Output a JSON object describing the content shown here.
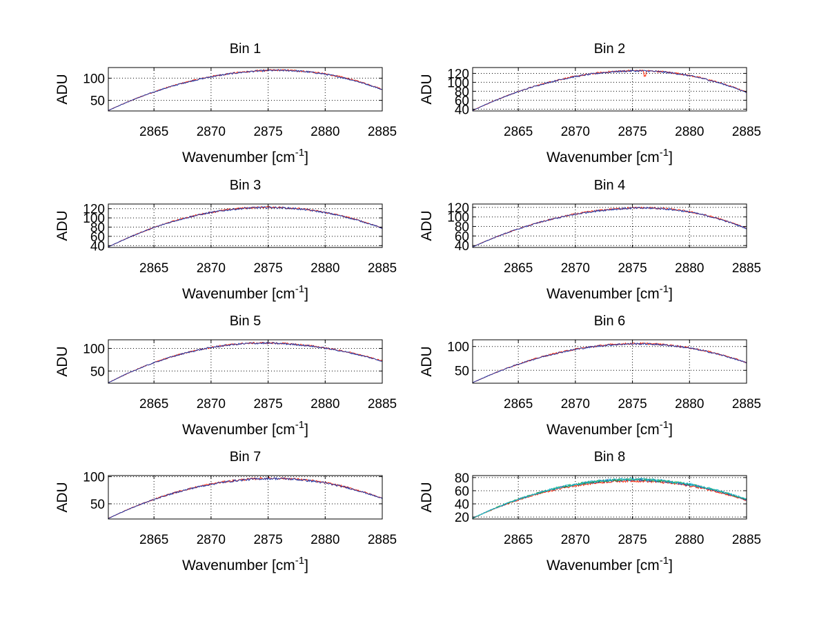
{
  "figure": {
    "background": "#ffffff"
  },
  "chart_data": [
    {
      "type": "line",
      "title": "Bin 1",
      "xlabel": "Wavenumber [cm",
      "xlabel_sup": "-1",
      "xlabel_suffix": "]",
      "ylabel": "ADU",
      "xlim": [
        2861,
        2885
      ],
      "ylim": [
        26,
        124
      ],
      "xticks": [
        2865,
        2870,
        2875,
        2880,
        2885
      ],
      "yticks": [
        50,
        100
      ],
      "series": [
        {
          "name": "red",
          "color": "#ff2200",
          "peak_x": 2876,
          "peak": 118,
          "ends": [
            27,
            75
          ]
        },
        {
          "name": "blue",
          "color": "#1f3aa8",
          "peak_x": 2876,
          "peak": 117.5,
          "ends": [
            27,
            74
          ]
        }
      ]
    },
    {
      "type": "line",
      "title": "Bin 2",
      "xlabel": "Wavenumber [cm",
      "xlabel_sup": "-1",
      "xlabel_suffix": "]",
      "ylabel": "ADU",
      "xlim": [
        2861,
        2885
      ],
      "ylim": [
        36,
        133
      ],
      "xticks": [
        2865,
        2870,
        2875,
        2880,
        2885
      ],
      "yticks": [
        40,
        60,
        80,
        100,
        120
      ],
      "series": [
        {
          "name": "red",
          "color": "#ff2200",
          "peak_x": 2875.5,
          "peak": 126,
          "ends": [
            37,
            78
          ]
        },
        {
          "name": "blue",
          "color": "#1f3aa8",
          "peak_x": 2875.5,
          "peak": 125.5,
          "ends": [
            37,
            77.5
          ]
        }
      ]
    },
    {
      "type": "line",
      "title": "Bin 3",
      "xlabel": "Wavenumber [cm",
      "xlabel_sup": "-1",
      "xlabel_suffix": "]",
      "ylabel": "ADU",
      "xlim": [
        2861,
        2885
      ],
      "ylim": [
        36,
        130
      ],
      "xticks": [
        2865,
        2870,
        2875,
        2880,
        2885
      ],
      "yticks": [
        40,
        60,
        80,
        100,
        120
      ],
      "series": [
        {
          "name": "red",
          "color": "#ff2200",
          "peak_x": 2875,
          "peak": 123,
          "ends": [
            37,
            78
          ]
        },
        {
          "name": "blue",
          "color": "#1f3aa8",
          "peak_x": 2875,
          "peak": 122.5,
          "ends": [
            37,
            77.5
          ]
        }
      ]
    },
    {
      "type": "line",
      "title": "Bin 4",
      "xlabel": "Wavenumber [cm",
      "xlabel_sup": "-1",
      "xlabel_suffix": "]",
      "ylabel": "ADU",
      "xlim": [
        2861,
        2885
      ],
      "ylim": [
        36,
        127
      ],
      "xticks": [
        2865,
        2870,
        2875,
        2880,
        2885
      ],
      "yticks": [
        40,
        60,
        80,
        100,
        120
      ],
      "series": [
        {
          "name": "red",
          "color": "#ff2200",
          "peak_x": 2876,
          "peak": 119,
          "ends": [
            37,
            76
          ]
        },
        {
          "name": "blue",
          "color": "#1f3aa8",
          "peak_x": 2876,
          "peak": 118.5,
          "ends": [
            37,
            75.5
          ]
        }
      ]
    },
    {
      "type": "line",
      "title": "Bin 5",
      "xlabel": "Wavenumber [cm",
      "xlabel_sup": "-1",
      "xlabel_suffix": "]",
      "ylabel": "ADU",
      "xlim": [
        2861,
        2885
      ],
      "ylim": [
        23,
        119
      ],
      "xticks": [
        2865,
        2870,
        2875,
        2880,
        2885
      ],
      "yticks": [
        50,
        100
      ],
      "series": [
        {
          "name": "red",
          "color": "#ff2200",
          "peak_x": 2874.5,
          "peak": 112,
          "ends": [
            24,
            72
          ]
        },
        {
          "name": "blue",
          "color": "#1f3aa8",
          "peak_x": 2874.5,
          "peak": 111.5,
          "ends": [
            24,
            71.5
          ]
        }
      ]
    },
    {
      "type": "line",
      "title": "Bin 6",
      "xlabel": "Wavenumber [cm",
      "xlabel_sup": "-1",
      "xlabel_suffix": "]",
      "ylabel": "ADU",
      "xlim": [
        2861,
        2885
      ],
      "ylim": [
        23,
        114
      ],
      "xticks": [
        2865,
        2870,
        2875,
        2880,
        2885
      ],
      "yticks": [
        50,
        100
      ],
      "series": [
        {
          "name": "red",
          "color": "#ff2200",
          "peak_x": 2875.5,
          "peak": 106,
          "ends": [
            24,
            66
          ]
        },
        {
          "name": "blue",
          "color": "#1f3aa8",
          "peak_x": 2875.5,
          "peak": 105.5,
          "ends": [
            24,
            65.5
          ]
        }
      ]
    },
    {
      "type": "line",
      "title": "Bin 7",
      "xlabel": "Wavenumber [cm",
      "xlabel_sup": "-1",
      "xlabel_suffix": "]",
      "ylabel": "ADU",
      "xlim": [
        2861,
        2885
      ],
      "ylim": [
        22,
        102
      ],
      "xticks": [
        2865,
        2870,
        2875,
        2880,
        2885
      ],
      "yticks": [
        50,
        100
      ],
      "series": [
        {
          "name": "red",
          "color": "#ff2200",
          "peak_x": 2875.5,
          "peak": 97,
          "ends": [
            23,
            60
          ]
        },
        {
          "name": "blue",
          "color": "#1f3aa8",
          "peak_x": 2875.5,
          "peak": 96.5,
          "ends": [
            23,
            59.5
          ]
        }
      ]
    },
    {
      "type": "line",
      "title": "Bin 8",
      "xlabel": "Wavenumber [cm",
      "xlabel_sup": "-1",
      "xlabel_suffix": "]",
      "ylabel": "ADU",
      "xlim": [
        2861,
        2885
      ],
      "ylim": [
        17,
        83
      ],
      "xticks": [
        2865,
        2870,
        2875,
        2880,
        2885
      ],
      "yticks": [
        20,
        40,
        60,
        80
      ],
      "series": [
        {
          "name": "red",
          "color": "#ff2200",
          "peak_x": 2875,
          "peak": 75,
          "ends": [
            18,
            45
          ]
        },
        {
          "name": "blue",
          "color": "#1f3aa8",
          "peak_x": 2875,
          "peak": 76.5,
          "ends": [
            18,
            46
          ]
        },
        {
          "name": "green",
          "color": "#22a83c",
          "peak_x": 2875,
          "peak": 77,
          "ends": [
            18,
            46.5
          ]
        },
        {
          "name": "cyan",
          "color": "#20b8d0",
          "peak_x": 2875,
          "peak": 77.5,
          "ends": [
            18,
            47
          ]
        }
      ]
    }
  ]
}
